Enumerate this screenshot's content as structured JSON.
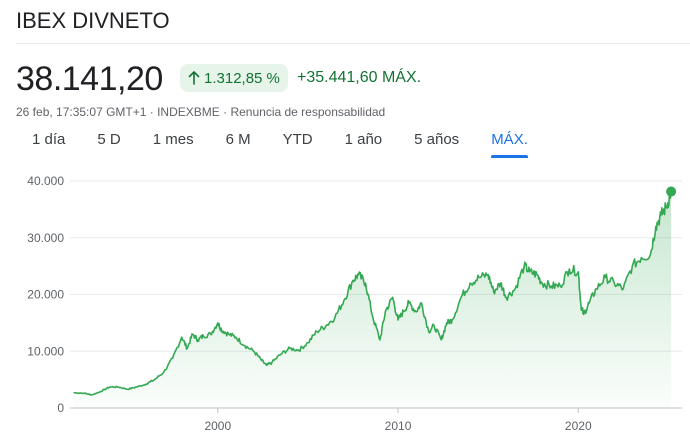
{
  "header": {
    "title": "IBEX DIVNETO"
  },
  "quote": {
    "price": "38.141,20",
    "change_percent": "1.312,85 %",
    "change_max": "+35.441,60 MÁX.",
    "timestamp": "26 feb, 17:35:07 GMT+1",
    "source": "INDEXBME",
    "separator": " · ",
    "disclaimer": "Renuncia de responsabilidad",
    "accent_color": "#137333"
  },
  "tabs": [
    {
      "label": "1 día"
    },
    {
      "label": "5 D"
    },
    {
      "label": "1 mes"
    },
    {
      "label": "6 M"
    },
    {
      "label": "YTD"
    },
    {
      "label": "1 año"
    },
    {
      "label": "5 años"
    },
    {
      "label": "MÁX."
    }
  ],
  "active_tab": 7,
  "chart_data": {
    "type": "area",
    "title": "",
    "xlabel": "",
    "ylabel": "",
    "ylim": [
      0,
      40000
    ],
    "xlim": [
      1991.8,
      2025.2
    ],
    "yticks": [
      0,
      10000,
      20000,
      30000,
      40000
    ],
    "ytick_labels": [
      "0",
      "10.000",
      "20.000",
      "30.000",
      "40.000"
    ],
    "xticks": [
      2000,
      2010,
      2020
    ],
    "xtick_labels": [
      "2000",
      "2010",
      "2020"
    ],
    "grid": true,
    "line_color": "#34a853",
    "series": [
      {
        "name": "IBEX DIVNETO",
        "x": [
          1992.0,
          1992.6,
          1993.0,
          1993.5,
          1994.0,
          1994.5,
          1995.0,
          1995.5,
          1996.0,
          1996.5,
          1997.0,
          1997.5,
          1998.0,
          1998.3,
          1998.6,
          1998.9,
          1999.2,
          1999.6,
          2000.0,
          2000.2,
          2000.6,
          2001.0,
          2001.5,
          2002.0,
          2002.4,
          2002.7,
          2003.0,
          2003.5,
          2004.0,
          2004.5,
          2005.0,
          2005.5,
          2006.0,
          2006.5,
          2007.0,
          2007.5,
          2007.8,
          2008.2,
          2008.6,
          2009.0,
          2009.3,
          2009.7,
          2010.0,
          2010.3,
          2010.6,
          2011.0,
          2011.3,
          2011.7,
          2012.0,
          2012.4,
          2012.7,
          2013.0,
          2013.5,
          2014.0,
          2014.5,
          2015.0,
          2015.3,
          2015.7,
          2016.0,
          2016.5,
          2017.0,
          2017.3,
          2017.7,
          2018.0,
          2018.5,
          2019.0,
          2019.5,
          2020.0,
          2020.15,
          2020.3,
          2020.6,
          2021.0,
          2021.5,
          2022.0,
          2022.5,
          2023.0,
          2023.5,
          2024.0,
          2024.3,
          2024.6,
          2024.9,
          2025.15
        ],
        "values": [
          2700,
          2600,
          2300,
          2900,
          3700,
          3700,
          3300,
          3700,
          4200,
          5000,
          6300,
          8800,
          12500,
          10500,
          13000,
          12000,
          12700,
          13000,
          15000,
          13800,
          13000,
          12500,
          11000,
          10000,
          8500,
          7500,
          8000,
          9500,
          10500,
          10200,
          11500,
          13500,
          14500,
          16000,
          19000,
          22500,
          23500,
          22000,
          16000,
          12000,
          17000,
          19500,
          15500,
          17000,
          18500,
          17000,
          18500,
          13500,
          14500,
          12000,
          15000,
          15500,
          19500,
          22000,
          23000,
          23500,
          20500,
          22000,
          19500,
          21000,
          25000,
          24000,
          23500,
          22000,
          21500,
          21500,
          24500,
          24000,
          18000,
          16500,
          18500,
          21000,
          23000,
          22000,
          21000,
          25000,
          26500,
          27000,
          32000,
          34000,
          35500,
          38141
        ]
      }
    ]
  }
}
